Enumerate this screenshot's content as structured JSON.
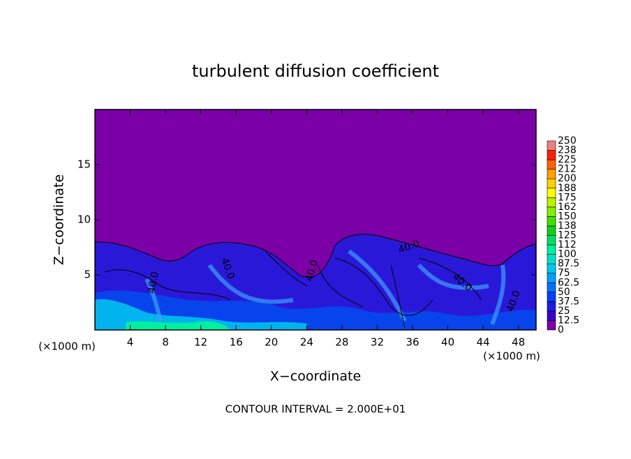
{
  "chart_data": {
    "type": "contour",
    "title": "turbulent diffusion coefficient",
    "x_label": "X−coordinate",
    "y_label": "Z−coordinate",
    "x_unit": "(×1000 m)",
    "footer": "CONTOUR INTERVAL = 2.000E+01",
    "xlim": [
      0,
      50
    ],
    "xticks": [
      4,
      8,
      12,
      16,
      20,
      24,
      28,
      32,
      36,
      40,
      44,
      48
    ],
    "ylim": [
      0,
      20
    ],
    "yticks": [
      5,
      10,
      15
    ],
    "contour_labels": [
      "40.0",
      "40.0",
      "40.0",
      "40.0",
      "40.0",
      "40.0"
    ],
    "colorbar": {
      "levels": [
        0,
        12.5,
        25,
        37.5,
        50,
        62.5,
        75,
        87.5,
        100,
        112,
        125,
        138,
        150,
        162,
        175,
        188,
        200,
        212,
        225,
        238,
        250
      ],
      "colors": [
        "#7b00a8",
        "#3a00c8",
        "#1c1ce0",
        "#0040ff",
        "#0070ff",
        "#00a0ff",
        "#00c8f0",
        "#00e0c8",
        "#00f0a0",
        "#00e060",
        "#10d020",
        "#40e000",
        "#80f000",
        "#c0f000",
        "#ffff00",
        "#ffd000",
        "#ffa000",
        "#ff6000",
        "#ff2000",
        "#f08080"
      ]
    }
  }
}
